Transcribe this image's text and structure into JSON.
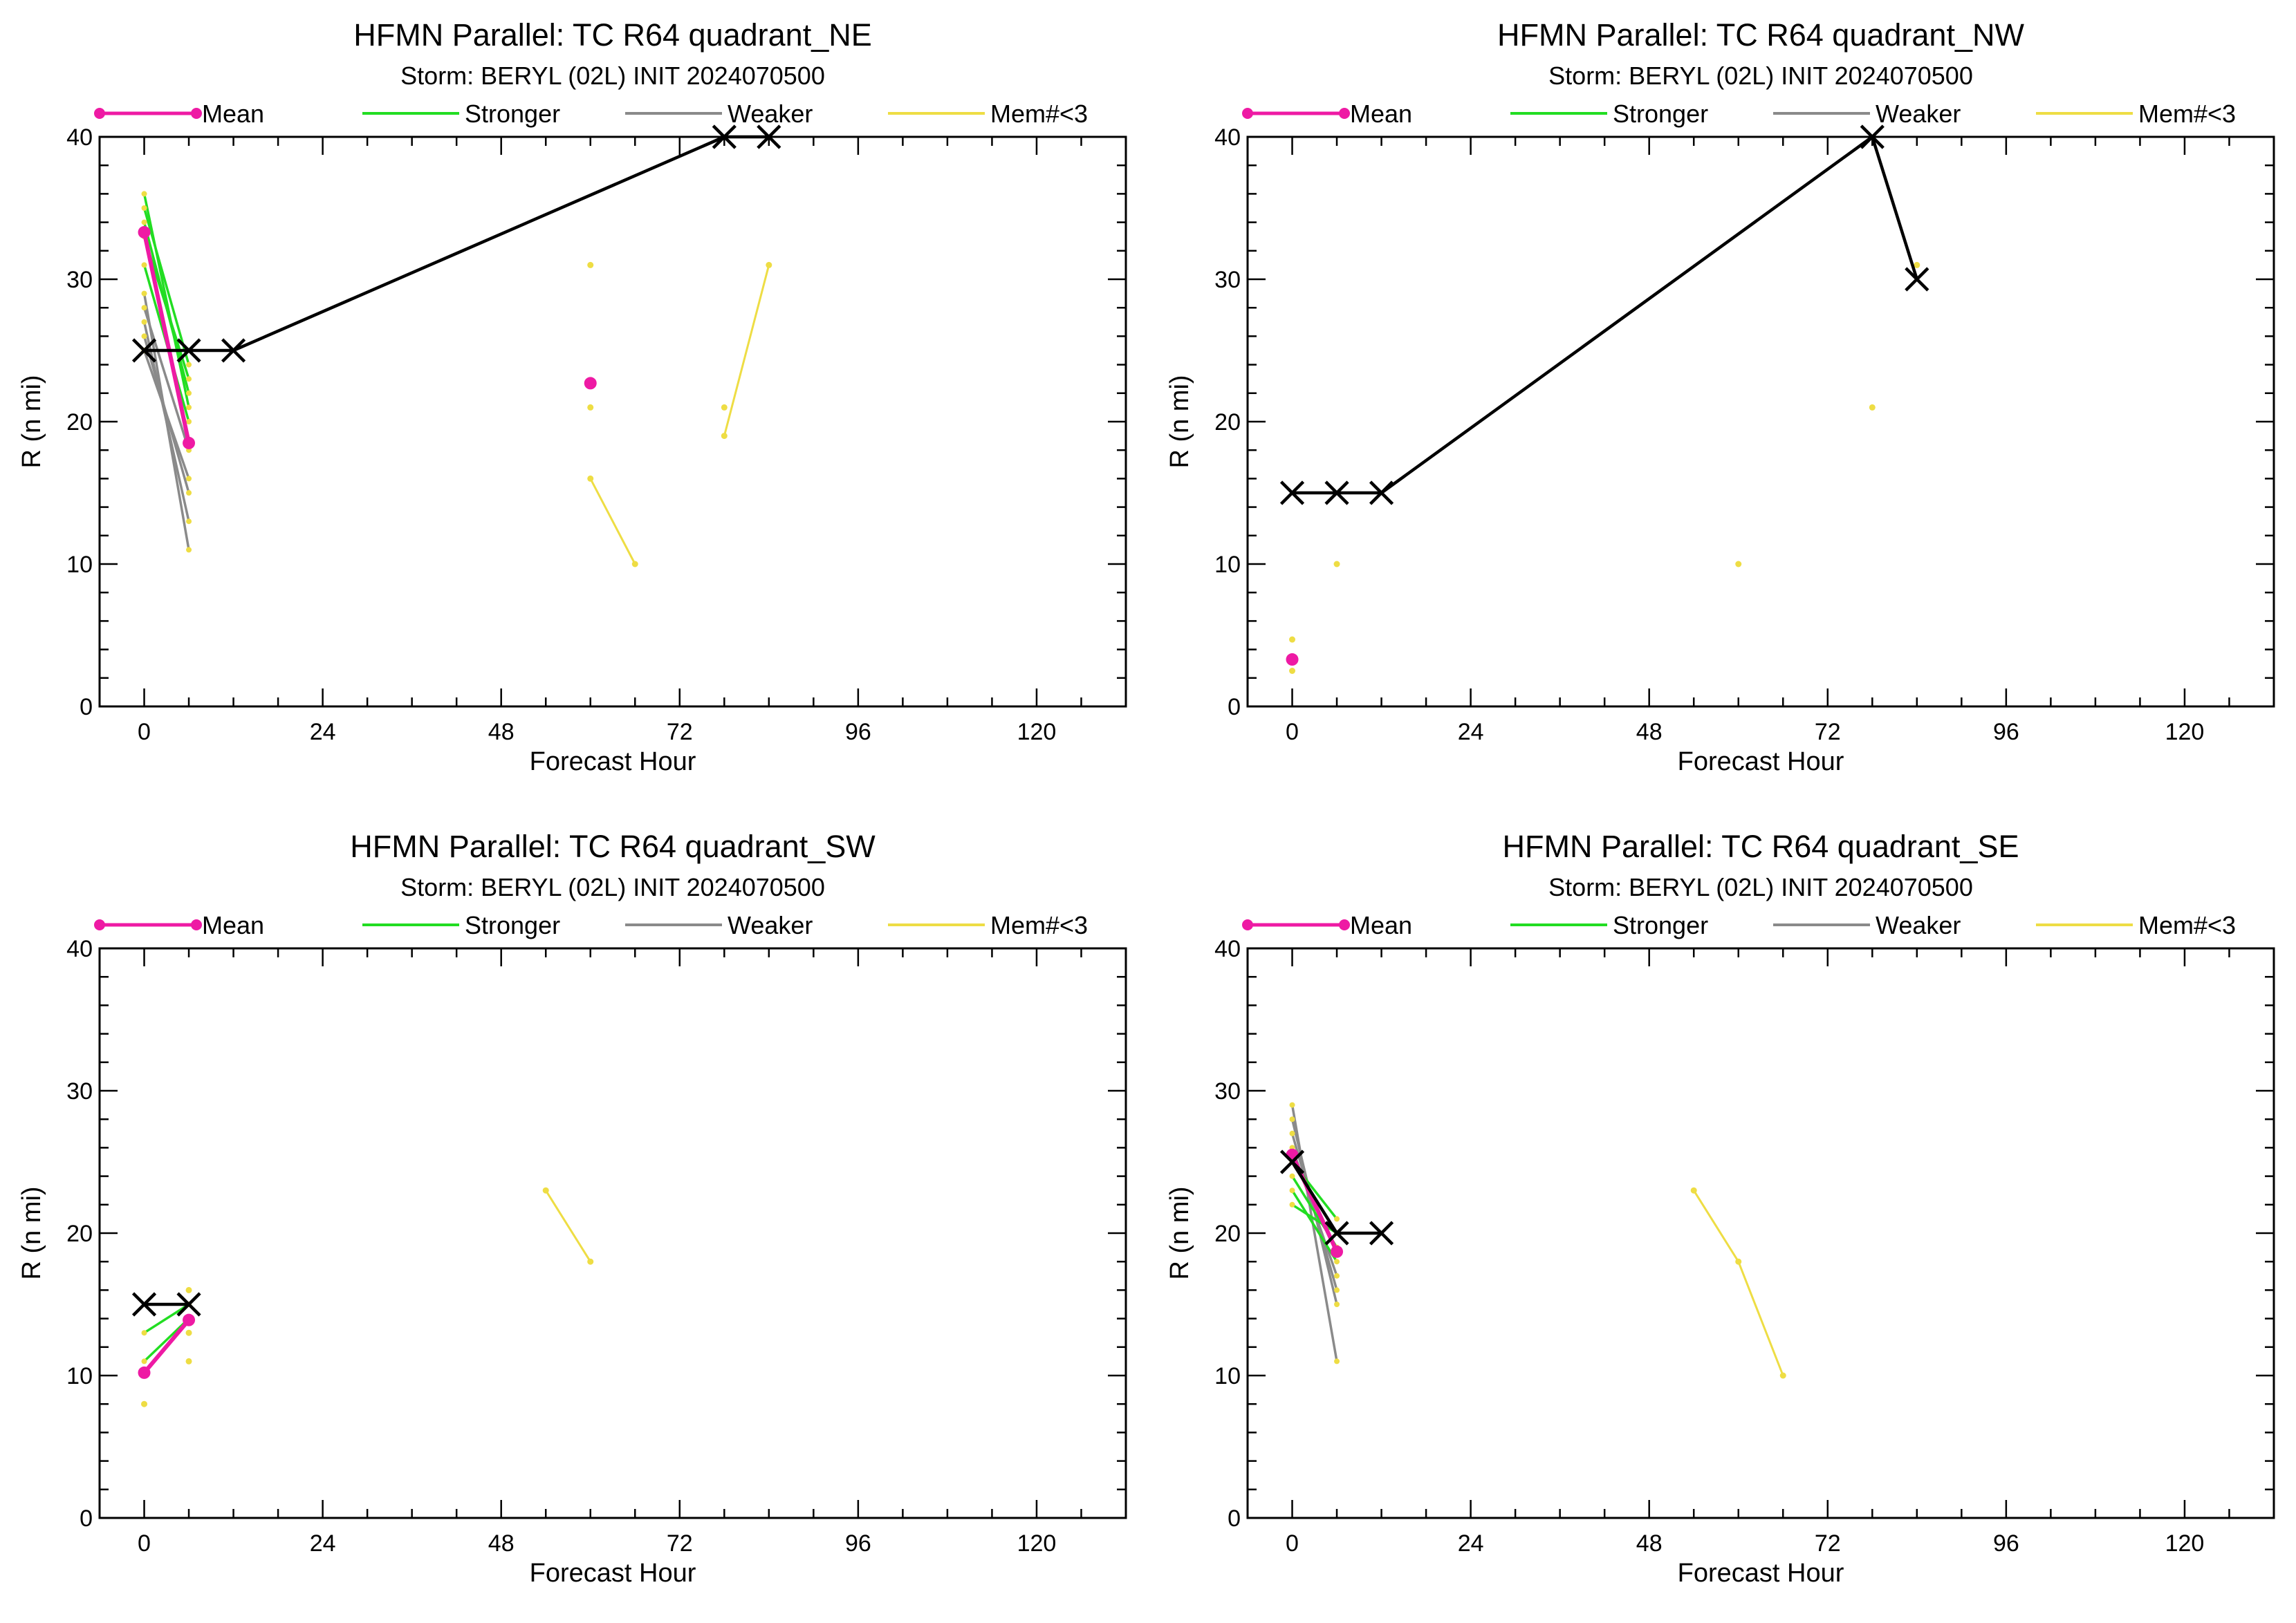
{
  "colors": {
    "mean": "#ee1aa4",
    "stronger": "#22dd22",
    "weaker": "#8a8a8a",
    "few_members": "#eedd44",
    "official": "#000000"
  },
  "chart_data": [
    {
      "type": "line",
      "title": "HFMN Parallel: TC  R64 quadrant_NE",
      "subtitle": "Storm: BERYL (02L) INIT 2024070500",
      "xlabel": "Forecast Hour",
      "ylabel": "R (n mi)",
      "xlim": [
        -6,
        132
      ],
      "ylim": [
        0,
        40
      ],
      "xticks": [
        0,
        24,
        48,
        72,
        96,
        120
      ],
      "yticks": [
        0,
        10,
        20,
        30,
        40
      ],
      "legend": [
        {
          "key": "mean",
          "label": "Mean"
        },
        {
          "key": "stronger",
          "label": "Stronger"
        },
        {
          "key": "weaker",
          "label": "Weaker"
        },
        {
          "key": "few_members",
          "label": "Mem#<3"
        }
      ],
      "series": [
        {
          "kind": "stronger",
          "points": [
            [
              0,
              36
            ],
            [
              6,
              21
            ]
          ]
        },
        {
          "kind": "stronger",
          "points": [
            [
              0,
              35
            ],
            [
              6,
              24
            ]
          ]
        },
        {
          "kind": "stronger",
          "points": [
            [
              0,
              34
            ],
            [
              6,
              22
            ]
          ]
        },
        {
          "kind": "stronger",
          "points": [
            [
              0,
              33
            ],
            [
              6,
              23
            ]
          ]
        },
        {
          "kind": "stronger",
          "points": [
            [
              0,
              31
            ],
            [
              6,
              20
            ]
          ]
        },
        {
          "kind": "weaker",
          "points": [
            [
              0,
              29
            ],
            [
              6,
              11
            ]
          ]
        },
        {
          "kind": "weaker",
          "points": [
            [
              0,
              27
            ],
            [
              6,
              13
            ]
          ]
        },
        {
          "kind": "weaker",
          "points": [
            [
              0,
              26
            ],
            [
              6,
              15
            ]
          ]
        },
        {
          "kind": "weaker",
          "points": [
            [
              0,
              25
            ],
            [
              6,
              16
            ]
          ]
        },
        {
          "kind": "weaker",
          "points": [
            [
              0,
              28
            ],
            [
              6,
              18
            ]
          ]
        },
        {
          "kind": "few_members",
          "points": [
            [
              60,
              16
            ],
            [
              66,
              10
            ]
          ]
        },
        {
          "kind": "few_members",
          "points": [
            [
              78,
              19
            ],
            [
              84,
              31
            ]
          ]
        },
        {
          "kind": "few_members",
          "points": [
            [
              60,
              31
            ]
          ]
        },
        {
          "kind": "few_members",
          "points": [
            [
              60,
              21
            ]
          ]
        },
        {
          "kind": "few_members",
          "points": [
            [
              78,
              21
            ]
          ]
        },
        {
          "kind": "mean",
          "points": [
            [
              0,
              33.3
            ],
            [
              6,
              18.5
            ]
          ]
        },
        {
          "kind": "mean",
          "points": [
            [
              60,
              22.7
            ]
          ]
        },
        {
          "kind": "official",
          "points": [
            [
              0,
              25
            ],
            [
              6,
              25
            ],
            [
              12,
              25
            ],
            [
              78,
              40
            ],
            [
              84,
              40
            ]
          ]
        }
      ]
    },
    {
      "type": "line",
      "title": "HFMN Parallel: TC  R64 quadrant_NW",
      "subtitle": "Storm: BERYL (02L) INIT 2024070500",
      "xlabel": "Forecast Hour",
      "ylabel": "R (n mi)",
      "xlim": [
        -6,
        132
      ],
      "ylim": [
        0,
        40
      ],
      "xticks": [
        0,
        24,
        48,
        72,
        96,
        120
      ],
      "yticks": [
        0,
        10,
        20,
        30,
        40
      ],
      "legend": [
        {
          "key": "mean",
          "label": "Mean"
        },
        {
          "key": "stronger",
          "label": "Stronger"
        },
        {
          "key": "weaker",
          "label": "Weaker"
        },
        {
          "key": "few_members",
          "label": "Mem#<3"
        }
      ],
      "series": [
        {
          "kind": "few_members",
          "points": [
            [
              0,
              4.7
            ]
          ]
        },
        {
          "kind": "few_members",
          "points": [
            [
              0,
              2.5
            ]
          ]
        },
        {
          "kind": "few_members",
          "points": [
            [
              6,
              10
            ]
          ]
        },
        {
          "kind": "few_members",
          "points": [
            [
              60,
              10
            ]
          ]
        },
        {
          "kind": "few_members",
          "points": [
            [
              78,
              21
            ]
          ]
        },
        {
          "kind": "few_members",
          "points": [
            [
              84,
              31
            ]
          ]
        },
        {
          "kind": "mean",
          "points": [
            [
              0,
              3.3
            ]
          ]
        },
        {
          "kind": "official",
          "points": [
            [
              0,
              15
            ],
            [
              6,
              15
            ],
            [
              12,
              15
            ],
            [
              78,
              40
            ],
            [
              84,
              30
            ]
          ]
        }
      ]
    },
    {
      "type": "line",
      "title": "HFMN Parallel: TC  R64 quadrant_SW",
      "subtitle": "Storm: BERYL (02L) INIT 2024070500",
      "xlabel": "Forecast Hour",
      "ylabel": "R (n mi)",
      "xlim": [
        -6,
        132
      ],
      "ylim": [
        0,
        40
      ],
      "xticks": [
        0,
        24,
        48,
        72,
        96,
        120
      ],
      "yticks": [
        0,
        10,
        20,
        30,
        40
      ],
      "legend": [
        {
          "key": "mean",
          "label": "Mean"
        },
        {
          "key": "stronger",
          "label": "Stronger"
        },
        {
          "key": "weaker",
          "label": "Weaker"
        },
        {
          "key": "few_members",
          "label": "Mem#<3"
        }
      ],
      "series": [
        {
          "kind": "stronger",
          "points": [
            [
              0,
              13
            ],
            [
              6,
              15
            ]
          ]
        },
        {
          "kind": "stronger",
          "points": [
            [
              0,
              11
            ],
            [
              6,
              14
            ]
          ]
        },
        {
          "kind": "few_members",
          "points": [
            [
              0,
              8
            ]
          ]
        },
        {
          "kind": "few_members",
          "points": [
            [
              6,
              16
            ]
          ]
        },
        {
          "kind": "few_members",
          "points": [
            [
              6,
              13
            ]
          ]
        },
        {
          "kind": "few_members",
          "points": [
            [
              6,
              11
            ]
          ]
        },
        {
          "kind": "few_members",
          "points": [
            [
              54,
              23
            ],
            [
              60,
              18
            ]
          ]
        },
        {
          "kind": "mean",
          "points": [
            [
              0,
              10.2
            ],
            [
              6,
              13.9
            ]
          ]
        },
        {
          "kind": "official",
          "points": [
            [
              0,
              15
            ],
            [
              6,
              15
            ]
          ]
        }
      ]
    },
    {
      "type": "line",
      "title": "HFMN Parallel: TC  R64 quadrant_SE",
      "subtitle": "Storm: BERYL (02L) INIT 2024070500",
      "xlabel": "Forecast Hour",
      "ylabel": "R (n mi)",
      "xlim": [
        -6,
        132
      ],
      "ylim": [
        0,
        40
      ],
      "xticks": [
        0,
        24,
        48,
        72,
        96,
        120
      ],
      "yticks": [
        0,
        10,
        20,
        30,
        40
      ],
      "legend": [
        {
          "key": "mean",
          "label": "Mean"
        },
        {
          "key": "stronger",
          "label": "Stronger"
        },
        {
          "key": "weaker",
          "label": "Weaker"
        },
        {
          "key": "few_members",
          "label": "Mem#<3"
        }
      ],
      "series": [
        {
          "kind": "stronger",
          "points": [
            [
              0,
              24
            ],
            [
              6,
              19
            ]
          ]
        },
        {
          "kind": "stronger",
          "points": [
            [
              0,
              23
            ],
            [
              6,
              18
            ]
          ]
        },
        {
          "kind": "stronger",
          "points": [
            [
              0,
              25
            ],
            [
              6,
              21
            ]
          ]
        },
        {
          "kind": "stronger",
          "points": [
            [
              0,
              22
            ],
            [
              6,
              20
            ]
          ]
        },
        {
          "kind": "weaker",
          "points": [
            [
              0,
              29
            ],
            [
              6,
              11
            ]
          ]
        },
        {
          "kind": "weaker",
          "points": [
            [
              0,
              28
            ],
            [
              6,
              15
            ]
          ]
        },
        {
          "kind": "weaker",
          "points": [
            [
              0,
              27
            ],
            [
              6,
              16
            ]
          ]
        },
        {
          "kind": "weaker",
          "points": [
            [
              0,
              26
            ],
            [
              6,
              17
            ]
          ]
        },
        {
          "kind": "few_members",
          "points": [
            [
              54,
              23
            ],
            [
              60,
              18
            ],
            [
              66,
              10
            ]
          ]
        },
        {
          "kind": "mean",
          "points": [
            [
              0,
              25.5
            ],
            [
              6,
              18.7
            ]
          ]
        },
        {
          "kind": "official",
          "points": [
            [
              0,
              25
            ],
            [
              6,
              20
            ],
            [
              12,
              20
            ]
          ]
        }
      ]
    }
  ]
}
